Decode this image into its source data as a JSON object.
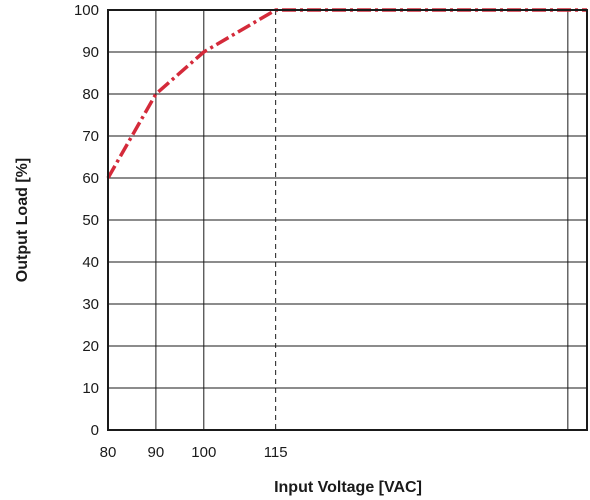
{
  "chart_data": {
    "type": "line",
    "title": "",
    "xlabel": "Input Voltage [VAC]",
    "ylabel": "Output Load [%]",
    "xlim": [
      80,
      180
    ],
    "ylim": [
      0,
      100
    ],
    "x_tick_labels": [
      80,
      90,
      100,
      115
    ],
    "y_tick_labels": [
      0,
      10,
      20,
      30,
      40,
      50,
      60,
      70,
      80,
      90,
      100
    ],
    "vertical_gridlines": [
      90,
      100,
      176
    ],
    "reference_line": {
      "x": 115,
      "style": "dashed"
    },
    "horizontal_grid": true,
    "series": [
      {
        "x": [
          80,
          90,
          100,
          115,
          180
        ],
        "y": [
          60,
          80,
          90,
          100,
          100
        ],
        "color": "#d42a3a",
        "style": "dash-dot"
      }
    ]
  }
}
